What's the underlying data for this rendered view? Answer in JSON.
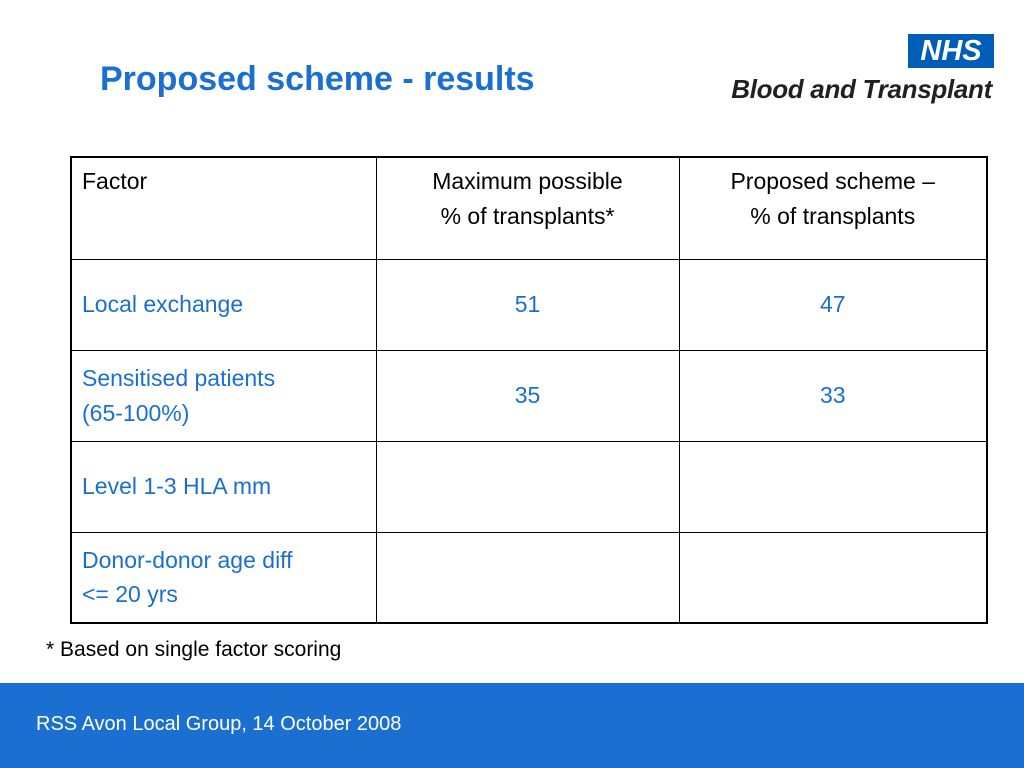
{
  "slide": {
    "title": "Proposed scheme - results"
  },
  "logo": {
    "badge": "NHS",
    "name": "Blood and Transplant"
  },
  "table": {
    "header": {
      "factor": "Factor",
      "max_line1": "Maximum possible",
      "max_line2": "% of transplants*",
      "prop_line1": "Proposed scheme –",
      "prop_line2": "% of transplants"
    },
    "rows": [
      {
        "factor_line1": "Local exchange",
        "factor_line2": "",
        "max": "51",
        "proposed": "47"
      },
      {
        "factor_line1": "Sensitised patients",
        "factor_line2": "(65-100%)",
        "max": "35",
        "proposed": "33"
      },
      {
        "factor_line1": "Level 1-3 HLA mm",
        "factor_line2": "",
        "max": "",
        "proposed": ""
      },
      {
        "factor_line1": "Donor-donor age diff",
        "factor_line2": "<= 20 yrs",
        "max": "",
        "proposed": ""
      }
    ]
  },
  "footnote": "* Based on single factor scoring",
  "footer": {
    "text": "RSS Avon Local Group, 14 October 2008"
  },
  "colors": {
    "accent": "#1a6fd1",
    "footer_bar": "#1b6fd0",
    "nhs_blue": "#005eb8"
  }
}
